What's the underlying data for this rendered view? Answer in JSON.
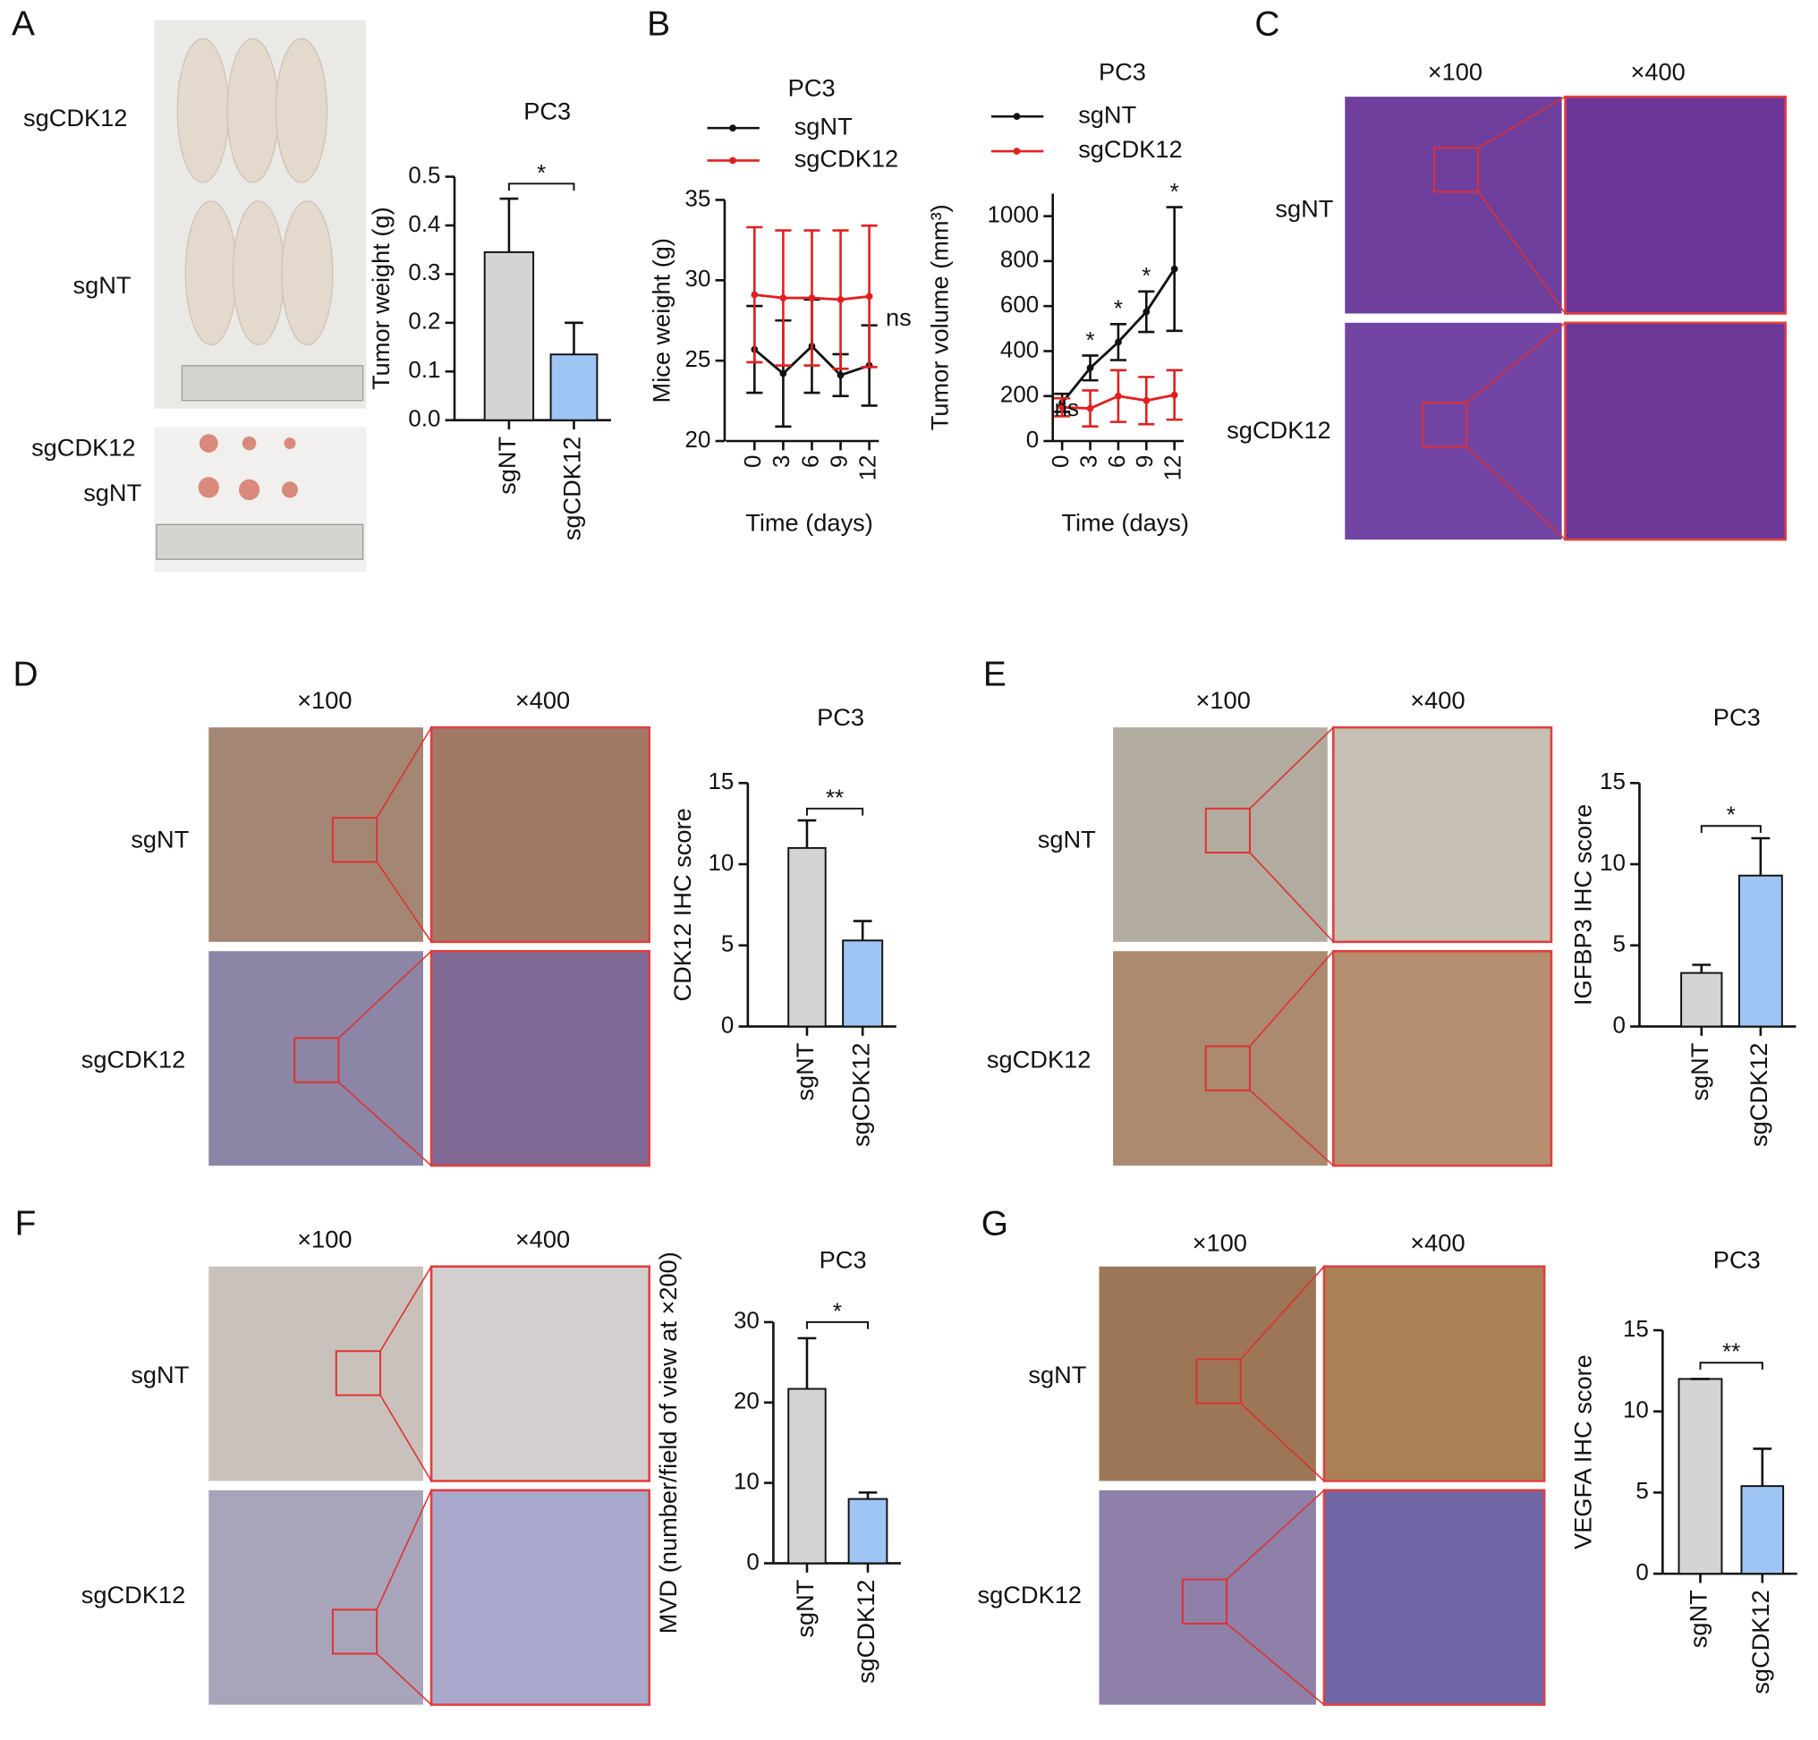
{
  "chart_data": [
    {
      "type": "bar",
      "title": "PC3",
      "ylabel": "Tumor weight (g)",
      "categories": [
        "sgNT",
        "sgCDK12"
      ],
      "values": [
        0.345,
        0.135
      ],
      "errors": [
        0.11,
        0.065
      ],
      "colors": [
        "#d4d4d4",
        "#9ec5f4"
      ],
      "ylim": [
        0,
        0.5
      ],
      "yticks": [
        {
          "value": 0,
          "label": "0.0"
        },
        0.1,
        0.2,
        0.3,
        0.4,
        0.5
      ],
      "significance": "*"
    },
    {
      "type": "line",
      "title": "PC3",
      "ylabel": "Mice weight (g)",
      "xlabel": "Time (days)",
      "x": [
        0,
        3,
        6,
        9,
        12
      ],
      "xlim": [
        -3,
        13
      ],
      "xticks": [
        0,
        3,
        6,
        9,
        12
      ],
      "ylim": [
        20,
        35
      ],
      "yticks": [
        20,
        25,
        30,
        35
      ],
      "series": [
        {
          "name": "sgNT",
          "color": "#111111",
          "values": [
            25.7,
            24.2,
            25.9,
            24.1,
            24.7
          ],
          "errors": [
            2.7,
            3.3,
            2.9,
            1.3,
            2.5
          ]
        },
        {
          "name": "sgCDK12",
          "color": "#e02020",
          "values": [
            29.1,
            28.9,
            28.9,
            28.8,
            29.0
          ],
          "errors": [
            4.2,
            4.2,
            4.2,
            4.3,
            4.4
          ]
        }
      ],
      "annotation": "ns"
    },
    {
      "type": "line",
      "title": "PC3",
      "ylabel": "Tumor volume (mm³)",
      "xlabel": "Time (days)",
      "x": [
        0,
        3,
        6,
        9,
        12
      ],
      "xlim": [
        -1,
        13
      ],
      "xticks": [
        0,
        3,
        6,
        9,
        12
      ],
      "ylim": [
        0,
        1100
      ],
      "yticks": [
        0,
        200,
        400,
        600,
        800,
        1000
      ],
      "series": [
        {
          "name": "sgNT",
          "color": "#111111",
          "values": [
            170,
            325,
            440,
            575,
            765
          ],
          "errors": [
            40,
            55,
            80,
            90,
            275
          ]
        },
        {
          "name": "sgCDK12",
          "color": "#e02020",
          "values": [
            150,
            145,
            200,
            180,
            205
          ],
          "errors": [
            40,
            80,
            115,
            105,
            110
          ]
        }
      ],
      "point_labels": [
        "ns",
        "*",
        "*",
        "*",
        "*"
      ]
    },
    {
      "type": "bar",
      "title": "PC3",
      "ylabel": "CDK12 IHC score",
      "categories": [
        "sgNT",
        "sgCDK12"
      ],
      "values": [
        11,
        5.3
      ],
      "errors": [
        1.7,
        1.2
      ],
      "colors": [
        "#d4d4d4",
        "#9ec5f4"
      ],
      "ylim": [
        0,
        15
      ],
      "yticks": [
        0,
        5,
        10,
        15
      ],
      "significance": "**"
    },
    {
      "type": "bar",
      "title": "PC3",
      "ylabel": "IGFBP3 IHC score",
      "categories": [
        "sgNT",
        "sgCDK12"
      ],
      "values": [
        3.3,
        9.3
      ],
      "errors": [
        0.5,
        2.3
      ],
      "colors": [
        "#d4d4d4",
        "#9ec5f4"
      ],
      "ylim": [
        0,
        15
      ],
      "yticks": [
        0,
        5,
        10,
        15
      ],
      "significance": "*"
    },
    {
      "type": "bar",
      "title": "PC3",
      "ylabel": "MVD (number/field of view at ×200)",
      "categories": [
        "sgNT",
        "sgCDK12"
      ],
      "values": [
        21.7,
        8
      ],
      "errors": [
        6.3,
        0.8
      ],
      "colors": [
        "#d4d4d4",
        "#9ec5f4"
      ],
      "ylim": [
        0,
        30
      ],
      "yticks": [
        0,
        10,
        20,
        30
      ],
      "significance": "*"
    },
    {
      "type": "bar",
      "title": "PC3",
      "ylabel": "VEGFA IHC score",
      "categories": [
        "sgNT",
        "sgCDK12"
      ],
      "values": [
        12,
        5.4
      ],
      "errors": [
        0,
        2.3
      ],
      "colors": [
        "#d4d4d4",
        "#9ec5f4"
      ],
      "ylim": [
        0,
        15
      ],
      "yticks": [
        0,
        5,
        10,
        15
      ],
      "significance": "**"
    }
  ],
  "panels": [
    {
      "letter": "A",
      "row_labels": [
        "sgCDK12",
        "sgNT",
        "sgCDK12",
        "sgNT"
      ]
    },
    {
      "letter": "B"
    },
    {
      "letter": "C",
      "magnifications": [
        "×100",
        "×400"
      ],
      "row_labels": [
        "sgNT",
        "sgCDK12"
      ]
    },
    {
      "letter": "D",
      "magnifications": [
        "×100",
        "×400"
      ],
      "row_labels": [
        "sgNT",
        "sgCDK12"
      ]
    },
    {
      "letter": "E",
      "magnifications": [
        "×100",
        "×400"
      ],
      "row_labels": [
        "sgNT",
        "sgCDK12"
      ]
    },
    {
      "letter": "F",
      "magnifications": [
        "×100",
        "×400"
      ],
      "row_labels": [
        "sgNT",
        "sgCDK12"
      ]
    },
    {
      "letter": "G",
      "magnifications": [
        "×100",
        "×400"
      ],
      "row_labels": [
        "sgNT",
        "sgCDK12"
      ]
    }
  ]
}
